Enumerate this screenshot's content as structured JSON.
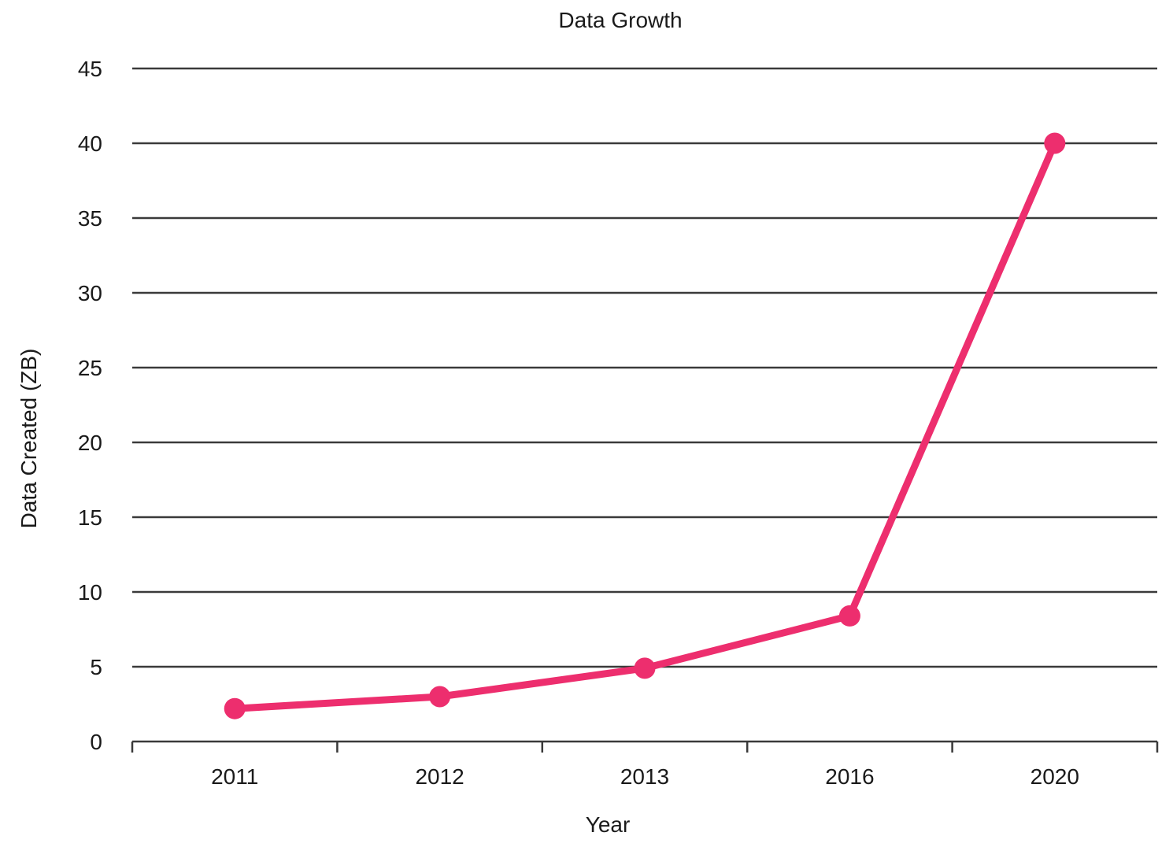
{
  "chart_data": {
    "type": "line",
    "title": "Data Growth",
    "xlabel": "Year",
    "ylabel": "Data Created (ZB)",
    "categories": [
      "2011",
      "2012",
      "2013",
      "2016",
      "2020"
    ],
    "series": [
      {
        "name": "Data Created",
        "values": [
          2.2,
          3,
          4.9,
          8.4,
          40
        ]
      }
    ],
    "ylim": [
      0,
      45
    ],
    "yticks": [
      0,
      5,
      10,
      15,
      20,
      25,
      30,
      35,
      40,
      45
    ],
    "grid": "horizontal",
    "legend_position": "none",
    "line_color": "#ED2E6E",
    "axis_color": "#3A3A3A",
    "text_color": "#1A1A1A",
    "background_color": "#FFFFFF"
  }
}
